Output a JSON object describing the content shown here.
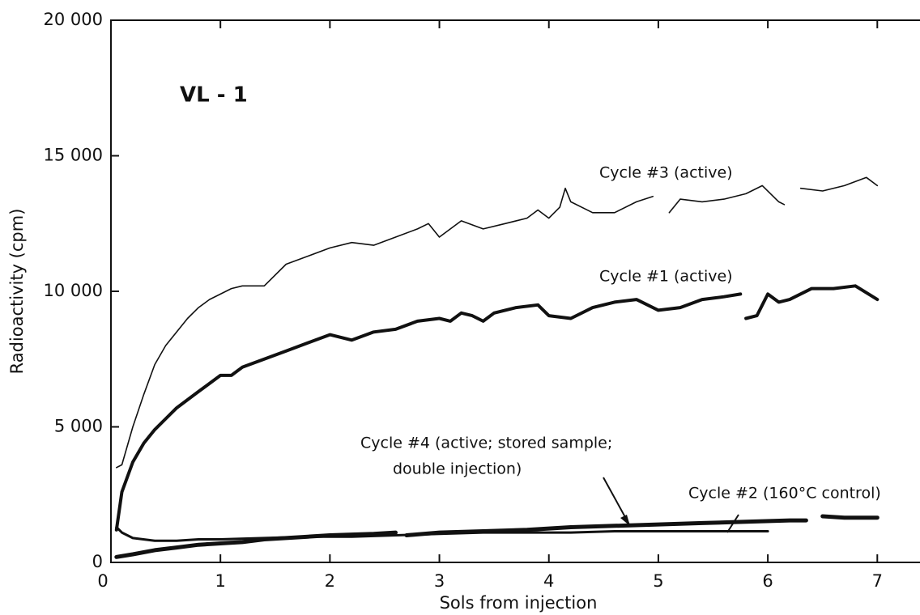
{
  "chart_data": {
    "type": "line",
    "title": "VL - 1",
    "xlabel": "Sols from injection",
    "ylabel": "Radioactivity (cpm)",
    "xlim": [
      0,
      7.39
    ],
    "ylim": [
      0,
      20000
    ],
    "xticks": [
      0,
      1,
      2,
      3,
      4,
      5,
      6,
      7
    ],
    "yticks": [
      0,
      {
        "value": 5000,
        "label": "5 000"
      },
      {
        "value": 10000,
        "label": "10 000"
      },
      {
        "value": 15000,
        "label": "15 000"
      },
      {
        "value": 20000,
        "label": "20 000"
      }
    ],
    "series": [
      {
        "name": "Cycle #3 (active)",
        "color": "#111111",
        "x": [
          0.05,
          0.1,
          0.2,
          0.3,
          0.4,
          0.5,
          0.6,
          0.7,
          0.8,
          0.9,
          1.0,
          1.1,
          1.2,
          1.4,
          1.6,
          1.8,
          2.0,
          2.2,
          2.4,
          2.6,
          2.8,
          2.9,
          3.0,
          3.1,
          3.2,
          3.4,
          3.6,
          3.8,
          3.9,
          4.0,
          4.1,
          4.15,
          4.2,
          4.4,
          4.6,
          4.8,
          4.95,
          5.0,
          5.1,
          5.2,
          5.4,
          5.6,
          5.8,
          5.95,
          6.1,
          6.15,
          6.2,
          6.3,
          6.5,
          6.7,
          6.9,
          7.0
        ],
        "values": [
          3500,
          3600,
          5000,
          6200,
          7300,
          8000,
          8500,
          9000,
          9400,
          9700,
          9900,
          10100,
          10200,
          10200,
          11000,
          11300,
          11600,
          11800,
          11700,
          12000,
          12300,
          12500,
          12000,
          12300,
          12600,
          12300,
          12500,
          12700,
          13000,
          12700,
          13100,
          13800,
          13300,
          12900,
          12900,
          13300,
          13500,
          null,
          12900,
          13400,
          13300,
          13400,
          13600,
          13900,
          13300,
          13200,
          null,
          13800,
          13700,
          13900,
          14200,
          13900
        ]
      },
      {
        "name": "Cycle #1 (active)",
        "color": "#111111",
        "x": [
          0.05,
          0.1,
          0.2,
          0.3,
          0.4,
          0.5,
          0.6,
          0.7,
          0.8,
          0.9,
          1.0,
          1.1,
          1.2,
          1.4,
          1.6,
          1.8,
          2.0,
          2.2,
          2.4,
          2.6,
          2.8,
          3.0,
          3.1,
          3.2,
          3.3,
          3.4,
          3.5,
          3.7,
          3.9,
          4.0,
          4.2,
          4.4,
          4.6,
          4.8,
          5.0,
          5.2,
          5.4,
          5.6,
          5.75,
          5.78,
          5.8,
          5.9,
          6.0,
          6.1,
          6.2,
          6.4,
          6.6,
          6.8,
          7.0
        ],
        "values": [
          1200,
          2600,
          3700,
          4400,
          4900,
          5300,
          5700,
          6000,
          6300,
          6600,
          6900,
          6900,
          7200,
          7500,
          7800,
          8100,
          8400,
          8200,
          8500,
          8600,
          8900,
          9000,
          8900,
          9200,
          9100,
          8900,
          9200,
          9400,
          9500,
          9100,
          9000,
          9400,
          9600,
          9700,
          9300,
          9400,
          9700,
          9800,
          9900,
          null,
          9000,
          9100,
          9900,
          9600,
          9700,
          10100,
          10100,
          10200,
          9700
        ]
      },
      {
        "name": "Cycle #4 (active; stored sample; double injection)",
        "color": "#111111",
        "x": [
          0.05,
          0.2,
          0.4,
          0.6,
          0.8,
          1.0,
          1.2,
          1.4,
          1.6,
          1.8,
          2.0,
          2.4,
          2.6,
          2.65,
          2.7,
          3.0,
          3.4,
          3.8,
          4.2,
          4.6,
          5.0,
          5.4,
          5.8,
          6.2,
          6.35,
          6.4,
          6.5,
          6.7,
          7.0
        ],
        "values": [
          200,
          300,
          450,
          550,
          650,
          700,
          750,
          850,
          900,
          950,
          1000,
          1050,
          1100,
          null,
          1000,
          1100,
          1150,
          1200,
          1300,
          1350,
          1400,
          1450,
          1500,
          1550,
          1550,
          null,
          1700,
          1650,
          1650
        ]
      },
      {
        "name": "Cycle #2 (160°C control)",
        "color": "#111111",
        "x": [
          0.05,
          0.1,
          0.2,
          0.4,
          0.6,
          0.8,
          1.0,
          1.4,
          1.8,
          2.2,
          2.6,
          3.0,
          3.4,
          3.8,
          4.2,
          4.6,
          5.0,
          5.4,
          5.8,
          6.0
        ],
        "values": [
          1300,
          1100,
          900,
          800,
          800,
          850,
          850,
          900,
          950,
          950,
          1000,
          1050,
          1100,
          1100,
          1100,
          1150,
          1150,
          1150,
          1150,
          1150
        ]
      }
    ],
    "annotations": [
      "Cycle #3 (active)",
      "Cycle #1 (active)",
      "Cycle #4 (active; stored sample;",
      "double injection)",
      "Cycle #2 (160°C control)"
    ]
  }
}
